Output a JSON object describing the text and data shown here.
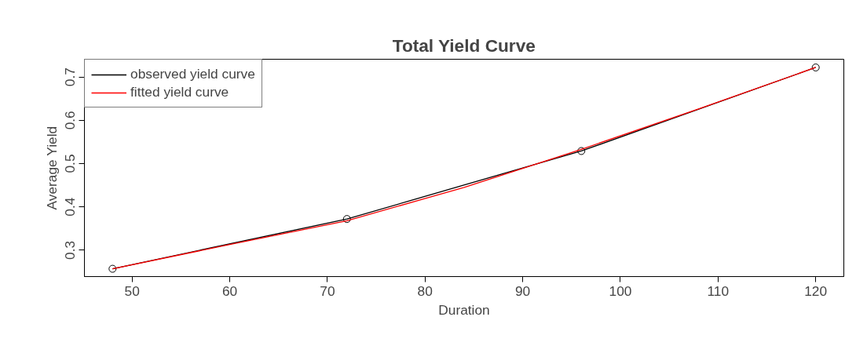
{
  "chart_data": {
    "type": "line",
    "title": "Total Yield Curve",
    "xlabel": "Duration",
    "ylabel": "Average Yield",
    "x": [
      48,
      72,
      96,
      120
    ],
    "series": [
      {
        "name": "observed yield curve",
        "color": "#000000",
        "values": [
          0.257,
          0.372,
          0.529,
          0.722
        ],
        "marker": "circle"
      },
      {
        "name": "fitted yield curve",
        "color": "#ff0000",
        "x": [
          48,
          60,
          72,
          84,
          96,
          108,
          120
        ],
        "values": [
          0.257,
          0.313,
          0.368,
          0.445,
          0.533,
          0.626,
          0.722
        ],
        "marker": "none"
      }
    ],
    "xlim": [
      45.12,
      122.88
    ],
    "ylim": [
      0.239,
      0.741
    ],
    "xticks": [
      50,
      60,
      70,
      80,
      90,
      100,
      110,
      120
    ],
    "yticks": [
      0.3,
      0.4,
      0.5,
      0.6,
      0.7
    ],
    "grid": false,
    "legend": "top left",
    "line_style": "solid"
  }
}
